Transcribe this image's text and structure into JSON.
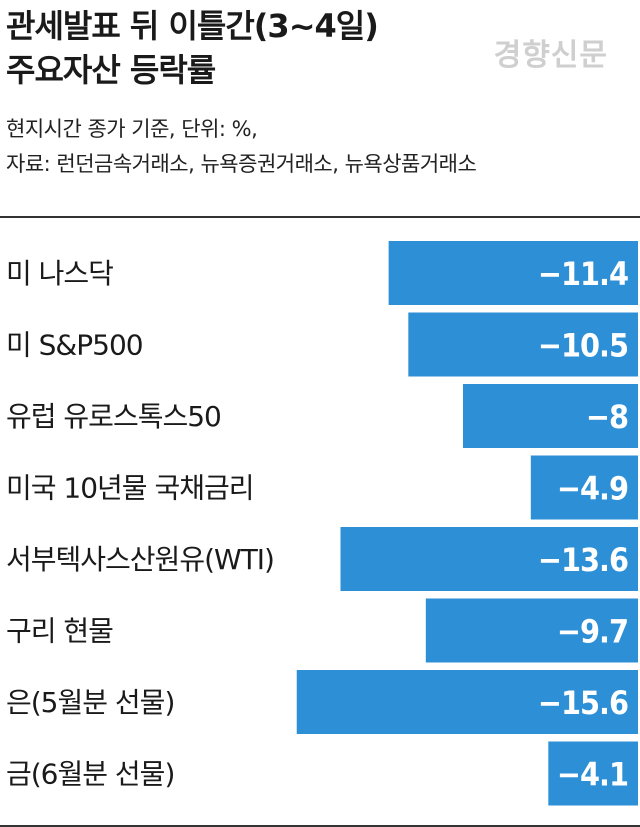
{
  "header": {
    "title_line1": "관세발표 뒤 이틀간(3~4일)",
    "title_line2": "주요자산 등락률",
    "note_line1": "현지시간 종가 기준, 단위: %,",
    "note_line2": "자료: 런던금속거래소, 뉴욕증권거래소, 뉴욕상품거래소",
    "watermark": "경향신문"
  },
  "colors": {
    "bar": "#2d8fd5",
    "value_text": "#ffffff",
    "rule": "#333333"
  },
  "chart_data": {
    "type": "bar",
    "orientation": "horizontal",
    "categories": [
      "미 나스닥",
      "미 S&P500",
      "유럽 유로스톡스50",
      "미국 10년물 국채금리",
      "서부텍사스산원유(WTI)",
      "구리 현물",
      "은(5월분 선물)",
      "금(6월분 선물)"
    ],
    "values": [
      -11.4,
      -10.5,
      -8,
      -4.9,
      -13.6,
      -9.7,
      -15.6,
      -4.1
    ],
    "value_labels": [
      "−11.4",
      "−10.5",
      "−8",
      "−4.9",
      "−13.6",
      "−9.7",
      "−15.6",
      "−4.1"
    ],
    "xlim": [
      -16,
      0
    ],
    "grid": false,
    "legend": "none"
  }
}
